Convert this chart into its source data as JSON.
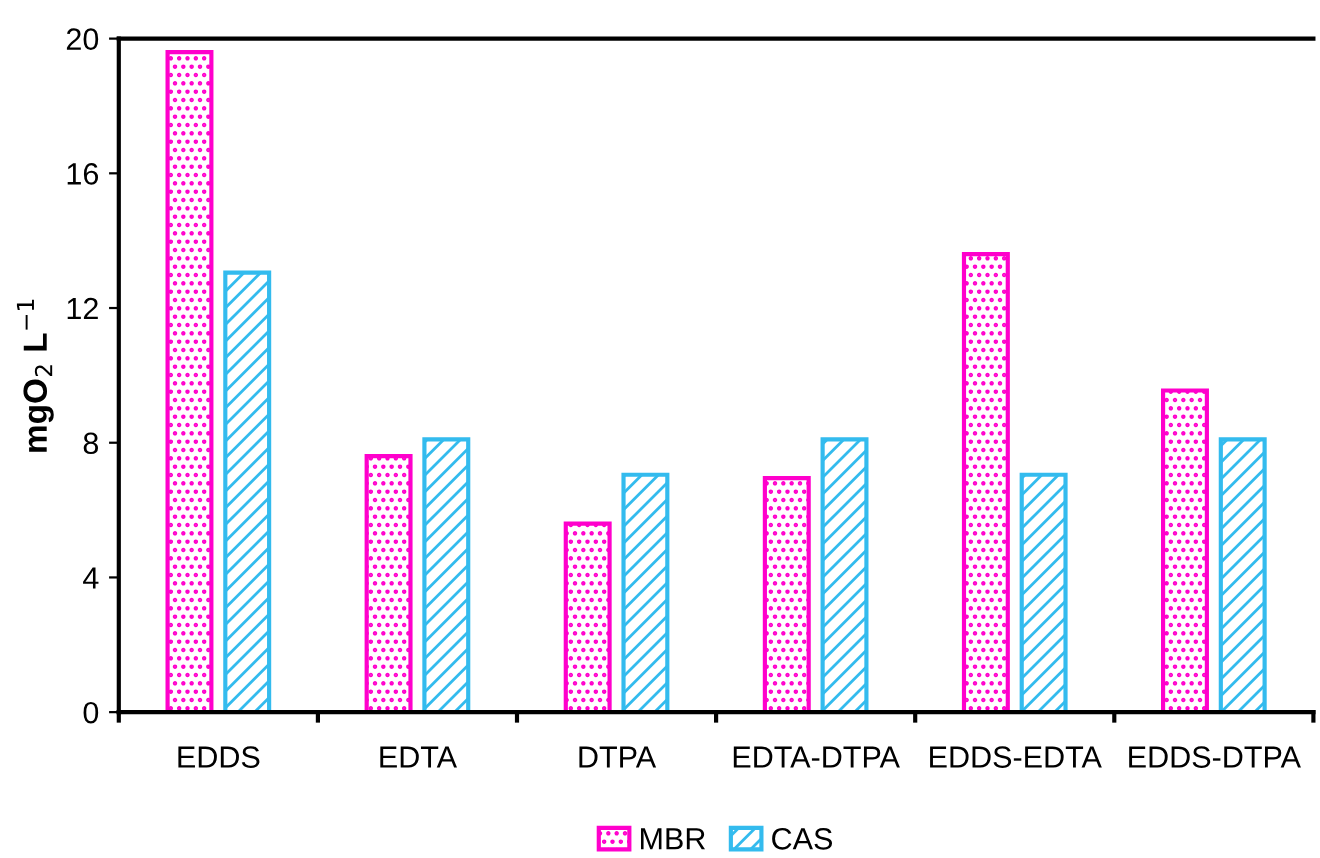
{
  "chart_data": {
    "type": "bar",
    "ylabel": "mgO$_{2}$ L$^{−1}$",
    "categories": [
      "EDDS",
      "EDTA",
      "DTPA",
      "EDTA-DTPA",
      "EDDS-EDTA",
      "EDDS-DTPA"
    ],
    "series": [
      {
        "name": "MBR",
        "color": "#ff00cc",
        "values": [
          19.6,
          7.6,
          5.6,
          6.95,
          13.6,
          9.55
        ]
      },
      {
        "name": "CAS",
        "color": "#33bbee",
        "values": [
          13.05,
          8.1,
          7.05,
          8.1,
          7.05,
          8.1
        ]
      }
    ],
    "ylim": [
      0,
      20
    ],
    "yticks": [
      0,
      4,
      8,
      12,
      16,
      20
    ],
    "grid": false,
    "legend": "bottom"
  }
}
